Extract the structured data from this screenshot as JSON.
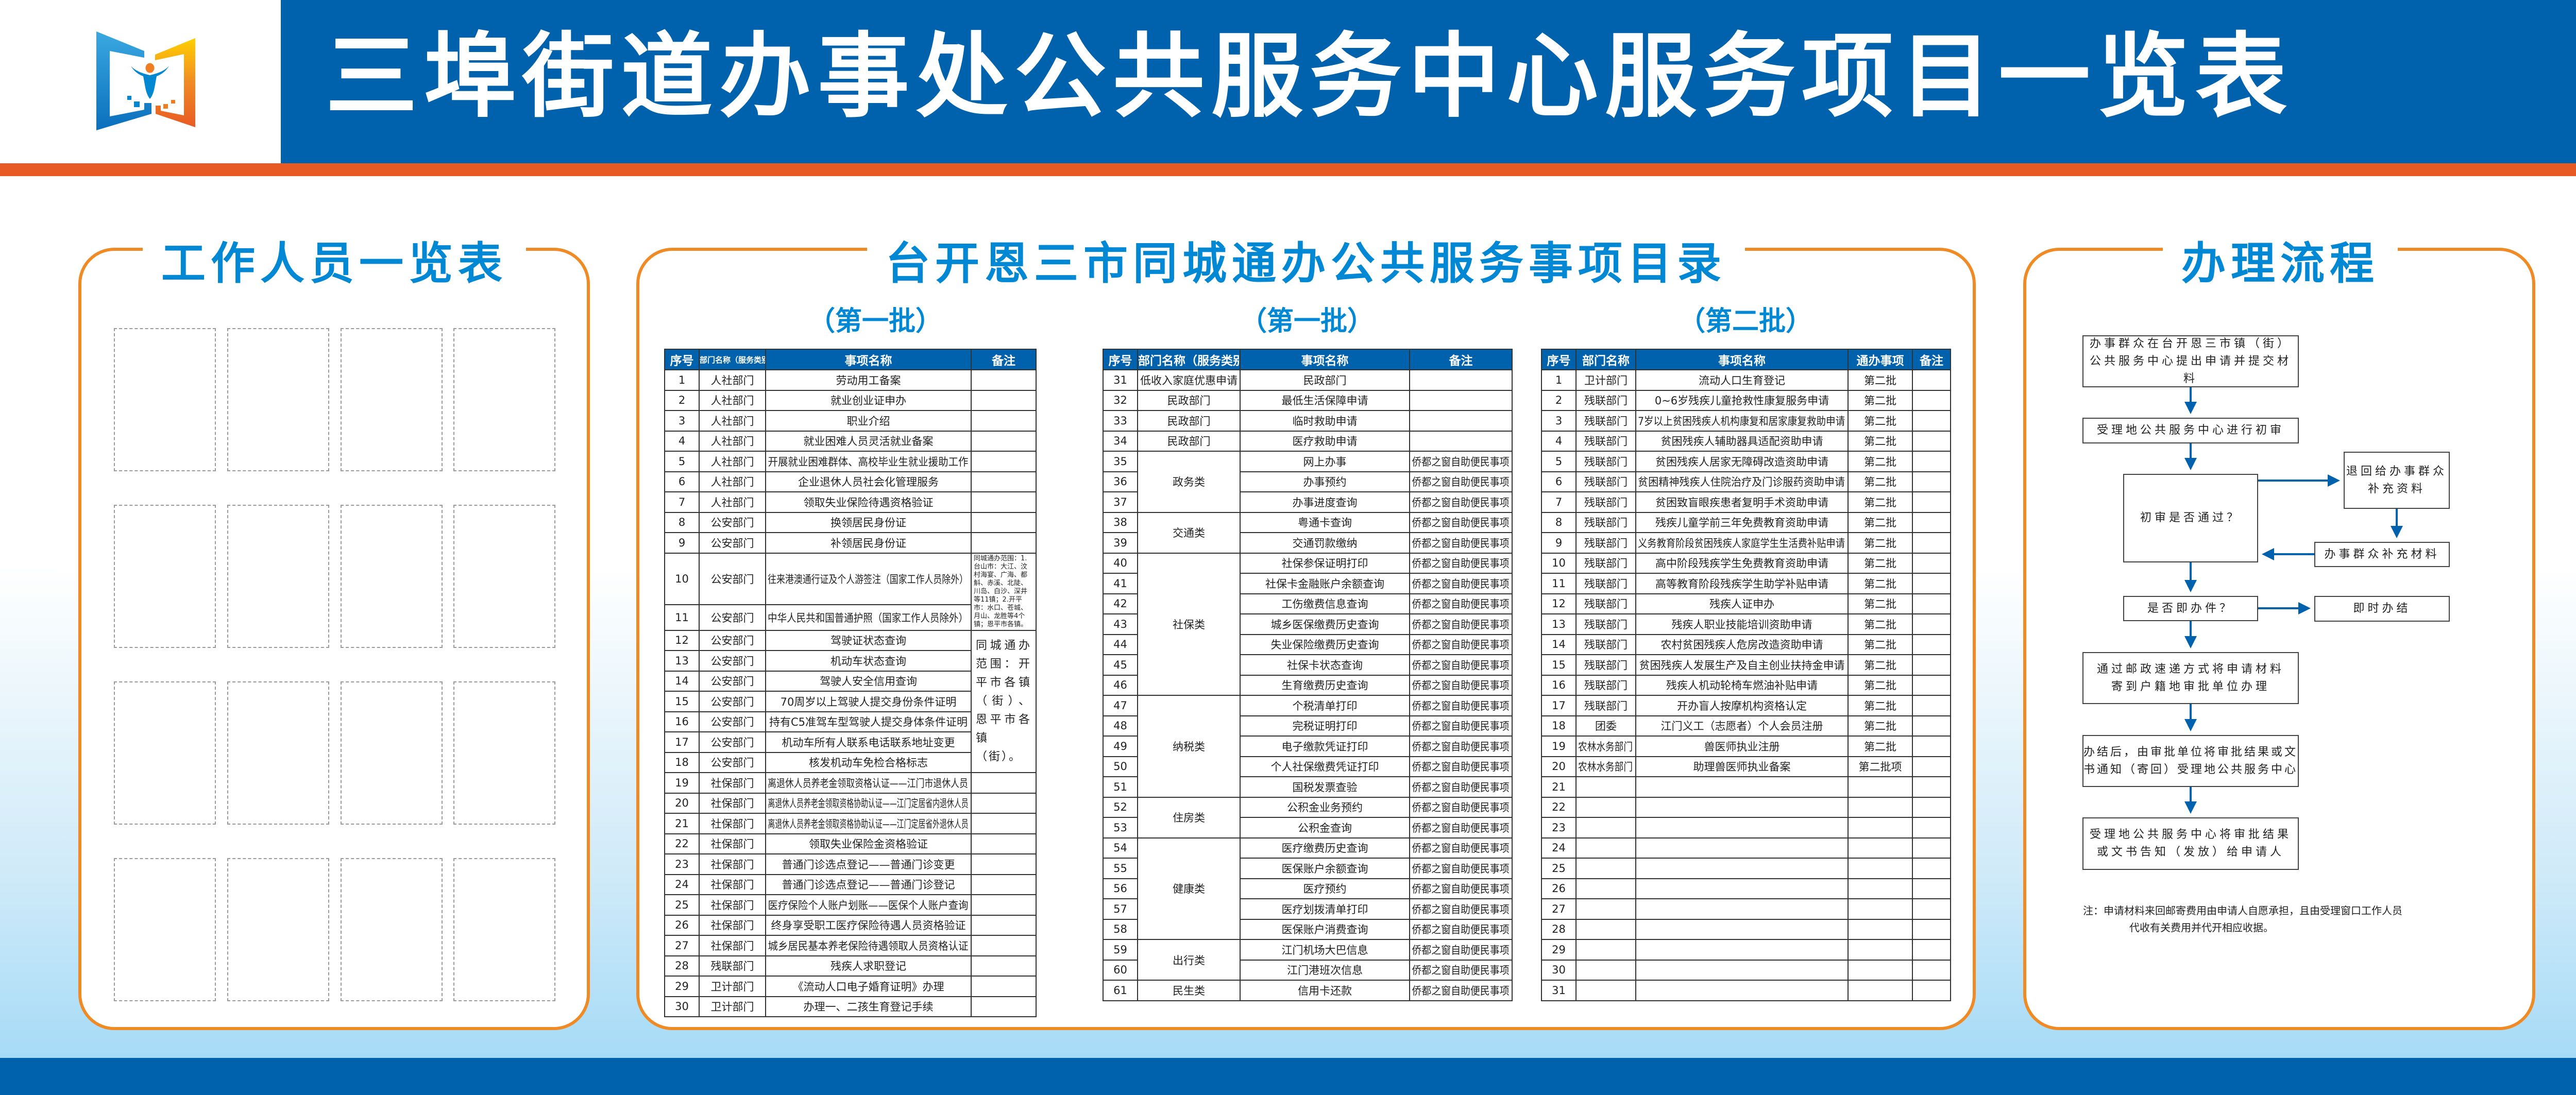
{
  "header": {
    "title": "三埠街道办事处公共服务中心服务项目一览表",
    "colors": {
      "brand_blue": "#0062ad",
      "accent_orange": "#e85a24",
      "frame_orange": "#f08a24",
      "heading_blue": "#0088d4"
    }
  },
  "staff_panel": {
    "title": "工作人员一览表"
  },
  "catalog_panel": {
    "title": "台开恩三市同城通办公共服务事项目录"
  },
  "tables": [
    {
      "heading": "（第一批）",
      "columns": [
        {
          "key": "no",
          "label": "序号"
        },
        {
          "key": "dept",
          "label": "部门名称（服务类别）"
        },
        {
          "key": "item",
          "label": "事项名称"
        },
        {
          "key": "remark",
          "label": "备注"
        }
      ],
      "rows": [
        {
          "no": "1",
          "dept": "人社部门",
          "item": "劳动用工备案",
          "remark": ""
        },
        {
          "no": "2",
          "dept": "人社部门",
          "item": "就业创业证申办",
          "remark": ""
        },
        {
          "no": "3",
          "dept": "人社部门",
          "item": "职业介绍",
          "remark": ""
        },
        {
          "no": "4",
          "dept": "人社部门",
          "item": "就业困难人员灵活就业备案",
          "remark": ""
        },
        {
          "no": "5",
          "dept": "人社部门",
          "item": "开展就业困难群体、高校毕业生就业援助工作",
          "remark": ""
        },
        {
          "no": "6",
          "dept": "人社部门",
          "item": "企业退休人员社会化管理服务",
          "remark": ""
        },
        {
          "no": "7",
          "dept": "人社部门",
          "item": "领取失业保险待遇资格验证",
          "remark": ""
        },
        {
          "no": "8",
          "dept": "公安部门",
          "item": "换领居民身份证",
          "remark": ""
        },
        {
          "no": "9",
          "dept": "公安部门",
          "item": "补领居民身份证",
          "remark": ""
        },
        {
          "no": "10",
          "dept": "公安部门",
          "item": "往来港澳通行证及个人游签注（国家工作人员除外）",
          "remark": "同城通办范围：1.台山市：大江、汶村海宴、广海、都斛、赤溪、北陡、川岛、白沙、深井等11镇；2.开平市：水口、苍城、月山、龙胜等4个镇；恩平市各镇。",
          "remark_span": 2,
          "remark_style": "small"
        },
        {
          "no": "11",
          "dept": "公安部门",
          "item": "中华人民共和国普通护照（国家工作人员除外）"
        },
        {
          "no": "12",
          "dept": "公安部门",
          "item": "驾驶证状态查询",
          "remark": "同城通办范围：开平市各镇（街）、恩平市各镇（街）。",
          "remark_span": 7,
          "remark_style": "big"
        },
        {
          "no": "13",
          "dept": "公安部门",
          "item": "机动车状态查询"
        },
        {
          "no": "14",
          "dept": "公安部门",
          "item": "驾驶人安全信用查询"
        },
        {
          "no": "15",
          "dept": "公安部门",
          "item": "70周岁以上驾驶人提交身份条件证明"
        },
        {
          "no": "16",
          "dept": "公安部门",
          "item": "持有C5准驾车型驾驶人提交身体条件证明"
        },
        {
          "no": "17",
          "dept": "公安部门",
          "item": "机动车所有人联系电话联系地址变更"
        },
        {
          "no": "18",
          "dept": "公安部门",
          "item": "核发机动车免检合格标志"
        },
        {
          "no": "19",
          "dept": "社保部门",
          "item": "离退休人员养老金领取资格认证——江门市退休人员",
          "remark": ""
        },
        {
          "no": "20",
          "dept": "社保部门",
          "item": "离退休人员养老金领取资格协助认证——江门定居省内退休人员",
          "remark": ""
        },
        {
          "no": "21",
          "dept": "社保部门",
          "item": "离退休人员养老金领取资格协助认证——江门定居省外退休人员",
          "remark": ""
        },
        {
          "no": "22",
          "dept": "社保部门",
          "item": "领取失业保险金资格验证",
          "remark": ""
        },
        {
          "no": "23",
          "dept": "社保部门",
          "item": "普通门诊选点登记——普通门诊变更",
          "remark": ""
        },
        {
          "no": "24",
          "dept": "社保部门",
          "item": "普通门诊选点登记——普通门诊登记",
          "remark": ""
        },
        {
          "no": "25",
          "dept": "社保部门",
          "item": "医疗保险个人账户划账——医保个人账户查询",
          "remark": ""
        },
        {
          "no": "26",
          "dept": "社保部门",
          "item": "终身享受职工医疗保险待遇人员资格验证",
          "remark": ""
        },
        {
          "no": "27",
          "dept": "社保部门",
          "item": "城乡居民基本养老保险待遇领取人员资格认证",
          "remark": ""
        },
        {
          "no": "28",
          "dept": "残联部门",
          "item": "残疾人求职登记",
          "remark": ""
        },
        {
          "no": "29",
          "dept": "卫计部门",
          "item": "《流动人口电子婚育证明》办理",
          "remark": ""
        },
        {
          "no": "30",
          "dept": "卫计部门",
          "item": "办理一、二孩生育登记手续",
          "remark": ""
        }
      ]
    },
    {
      "heading": "（第一批）",
      "columns": [
        {
          "key": "no",
          "label": "序号"
        },
        {
          "key": "dept",
          "label": "部门名称（服务类别）"
        },
        {
          "key": "item",
          "label": "事项名称"
        },
        {
          "key": "remark",
          "label": "备注"
        }
      ],
      "rows": [
        {
          "no": "31",
          "dept": "低收入家庭优惠申请",
          "item": "民政部门",
          "remark": ""
        },
        {
          "no": "32",
          "dept": "民政部门",
          "item": "最低生活保障申请",
          "remark": ""
        },
        {
          "no": "33",
          "dept": "民政部门",
          "item": "临时救助申请",
          "remark": ""
        },
        {
          "no": "34",
          "dept": "民政部门",
          "item": "医疗救助申请",
          "remark": ""
        },
        {
          "no": "35",
          "dept": "政务类",
          "dept_span": 3,
          "item": "网上办事",
          "remark": "侨都之窗自助便民事项"
        },
        {
          "no": "36",
          "item": "办事预约",
          "remark": "侨都之窗自助便民事项"
        },
        {
          "no": "37",
          "item": "办事进度查询",
          "remark": "侨都之窗自助便民事项"
        },
        {
          "no": "38",
          "dept": "交通类",
          "dept_span": 2,
          "item": "粤通卡查询",
          "remark": "侨都之窗自助便民事项"
        },
        {
          "no": "39",
          "item": "交通罚款缴纳",
          "remark": "侨都之窗自助便民事项"
        },
        {
          "no": "40",
          "dept": "社保类",
          "dept_span": 7,
          "item": "社保参保证明打印",
          "remark": "侨都之窗自助便民事项"
        },
        {
          "no": "41",
          "item": "社保卡金融账户余额查询",
          "remark": "侨都之窗自助便民事项"
        },
        {
          "no": "42",
          "item": "工伤缴费信息查询",
          "remark": "侨都之窗自助便民事项"
        },
        {
          "no": "43",
          "item": "城乡医保缴费历史查询",
          "remark": "侨都之窗自助便民事项"
        },
        {
          "no": "44",
          "item": "失业保险缴费历史查询",
          "remark": "侨都之窗自助便民事项"
        },
        {
          "no": "45",
          "item": "社保卡状态查询",
          "remark": "侨都之窗自助便民事项"
        },
        {
          "no": "46",
          "item": "生育缴费历史查询",
          "remark": "侨都之窗自助便民事项"
        },
        {
          "no": "47",
          "dept": "纳税类",
          "dept_span": 5,
          "item": "个税清单打印",
          "remark": "侨都之窗自助便民事项"
        },
        {
          "no": "48",
          "item": "完税证明打印",
          "remark": "侨都之窗自助便民事项"
        },
        {
          "no": "49",
          "item": "电子缴款凭证打印",
          "remark": "侨都之窗自助便民事项"
        },
        {
          "no": "50",
          "item": "个人社保缴费凭证打印",
          "remark": "侨都之窗自助便民事项"
        },
        {
          "no": "51",
          "item": "国税发票查验",
          "remark": "侨都之窗自助便民事项"
        },
        {
          "no": "52",
          "dept": "住房类",
          "dept_span": 2,
          "item": "公积金业务预约",
          "remark": "侨都之窗自助便民事项"
        },
        {
          "no": "53",
          "item": "公积金查询",
          "remark": "侨都之窗自助便民事项"
        },
        {
          "no": "54",
          "dept": "健康类",
          "dept_span": 5,
          "item": "医疗缴费历史查询",
          "remark": "侨都之窗自助便民事项"
        },
        {
          "no": "55",
          "item": "医保账户余额查询",
          "remark": "侨都之窗自助便民事项"
        },
        {
          "no": "56",
          "item": "医疗预约",
          "remark": "侨都之窗自助便民事项"
        },
        {
          "no": "57",
          "item": "医疗划拨清单打印",
          "remark": "侨都之窗自助便民事项"
        },
        {
          "no": "58",
          "item": "医保账户消费查询",
          "remark": "侨都之窗自助便民事项"
        },
        {
          "no": "59",
          "dept": "出行类",
          "dept_span": 2,
          "item": "江门机场大巴信息",
          "remark": "侨都之窗自助便民事项"
        },
        {
          "no": "60",
          "item": "江门港班次信息",
          "remark": "侨都之窗自助便民事项"
        },
        {
          "no": "61",
          "dept": "民生类",
          "item": "信用卡还款",
          "remark": "侨都之窗自助便民事项"
        }
      ]
    },
    {
      "heading": "（第二批）",
      "columns": [
        {
          "key": "no",
          "label": "序号"
        },
        {
          "key": "dept",
          "label": "部门名称"
        },
        {
          "key": "item",
          "label": "事项名称"
        },
        {
          "key": "batch",
          "label": "通办事项"
        },
        {
          "key": "remark",
          "label": "备注"
        }
      ],
      "rows": [
        {
          "no": "1",
          "dept": "卫计部门",
          "item": "流动人口生育登记",
          "batch": "第二批",
          "remark": ""
        },
        {
          "no": "2",
          "dept": "残联部门",
          "item": "0~6岁残疾儿童抢救性康复服务申请",
          "batch": "第二批",
          "remark": ""
        },
        {
          "no": "3",
          "dept": "残联部门",
          "item": "7岁以上贫困残疾人机构康复和居家康复救助申请",
          "batch": "第二批",
          "remark": ""
        },
        {
          "no": "4",
          "dept": "残联部门",
          "item": "贫困残疾人辅助器具适配资助申请",
          "batch": "第二批",
          "remark": ""
        },
        {
          "no": "5",
          "dept": "残联部门",
          "item": "贫困残疾人居家无障碍改造资助申请",
          "batch": "第二批",
          "remark": ""
        },
        {
          "no": "6",
          "dept": "残联部门",
          "item": "贫困精神残疾人住院治疗及门诊服药资助申请",
          "batch": "第二批",
          "remark": ""
        },
        {
          "no": "7",
          "dept": "残联部门",
          "item": "贫困致盲眼疾患者复明手术资助申请",
          "batch": "第二批",
          "remark": ""
        },
        {
          "no": "8",
          "dept": "残联部门",
          "item": "残疾儿童学前三年免费教育资助申请",
          "batch": "第二批",
          "remark": ""
        },
        {
          "no": "9",
          "dept": "残联部门",
          "item": "义务教育阶段贫困残疾人家庭学生生活费补贴申请",
          "batch": "第二批",
          "remark": ""
        },
        {
          "no": "10",
          "dept": "残联部门",
          "item": "高中阶段残疾学生免费教育资助申请",
          "batch": "第二批",
          "remark": ""
        },
        {
          "no": "11",
          "dept": "残联部门",
          "item": "高等教育阶段残疾学生助学补贴申请",
          "batch": "第二批",
          "remark": ""
        },
        {
          "no": "12",
          "dept": "残联部门",
          "item": "残疾人证申办",
          "batch": "第二批",
          "remark": ""
        },
        {
          "no": "13",
          "dept": "残联部门",
          "item": "残疾人职业技能培训资助申请",
          "batch": "第二批",
          "remark": ""
        },
        {
          "no": "14",
          "dept": "残联部门",
          "item": "农村贫困残疾人危房改造资助申请",
          "batch": "第二批",
          "remark": ""
        },
        {
          "no": "15",
          "dept": "残联部门",
          "item": "贫困残疾人发展生产及自主创业扶持金申请",
          "batch": "第二批",
          "remark": ""
        },
        {
          "no": "16",
          "dept": "残联部门",
          "item": "残疾人机动轮椅车燃油补贴申请",
          "batch": "第二批",
          "remark": ""
        },
        {
          "no": "17",
          "dept": "残联部门",
          "item": "开办盲人按摩机构资格认定",
          "batch": "第二批",
          "remark": ""
        },
        {
          "no": "18",
          "dept": "团委",
          "item": "江门义工（志愿者）个人会员注册",
          "batch": "第二批",
          "remark": ""
        },
        {
          "no": "19",
          "dept": "农林水务部门",
          "item": "兽医师执业注册",
          "batch": "第二批",
          "remark": ""
        },
        {
          "no": "20",
          "dept": "农林水务部门",
          "item": "助理兽医师执业备案",
          "batch": "第二批项",
          "remark": ""
        },
        {
          "no": "21",
          "dept": "",
          "item": "",
          "batch": "",
          "remark": ""
        },
        {
          "no": "22",
          "dept": "",
          "item": "",
          "batch": "",
          "remark": ""
        },
        {
          "no": "23",
          "dept": "",
          "item": "",
          "batch": "",
          "remark": ""
        },
        {
          "no": "24",
          "dept": "",
          "item": "",
          "batch": "",
          "remark": ""
        },
        {
          "no": "25",
          "dept": "",
          "item": "",
          "batch": "",
          "remark": ""
        },
        {
          "no": "26",
          "dept": "",
          "item": "",
          "batch": "",
          "remark": ""
        },
        {
          "no": "27",
          "dept": "",
          "item": "",
          "batch": "",
          "remark": ""
        },
        {
          "no": "28",
          "dept": "",
          "item": "",
          "batch": "",
          "remark": ""
        },
        {
          "no": "29",
          "dept": "",
          "item": "",
          "batch": "",
          "remark": ""
        },
        {
          "no": "30",
          "dept": "",
          "item": "",
          "batch": "",
          "remark": ""
        },
        {
          "no": "31",
          "dept": "",
          "item": "",
          "batch": "",
          "remark": ""
        }
      ]
    }
  ],
  "flow_panel": {
    "title": "办理流程",
    "steps": {
      "submit": [
        "办事群众在台开恩三市镇（街）",
        "公共服务中心提出申请并提交材料"
      ],
      "initial_review": "受理地公共服务中心进行初审",
      "review_passed": "初审是否通过？",
      "return": [
        "退回给办事群众",
        "补充资料"
      ],
      "supplement": "办事群众补充材料",
      "instant": "是否即办件？",
      "instant_done": "即时办结",
      "mail": [
        "通过邮政速递方式将申请材料",
        "寄到户籍地审批单位办理"
      ],
      "notify": [
        "办结后，由审批单位将审批结果或文",
        "书通知（寄回）受理地公共服务中心"
      ],
      "deliver": [
        "受理地公共服务中心将审批结果",
        "或文书告知（发放）给申请人"
      ]
    },
    "note": [
      "注：申请材料来回邮寄费用由申请人自愿承担，且由受理窗口工作人员",
      "代收有关费用并代开相应收据。"
    ]
  }
}
